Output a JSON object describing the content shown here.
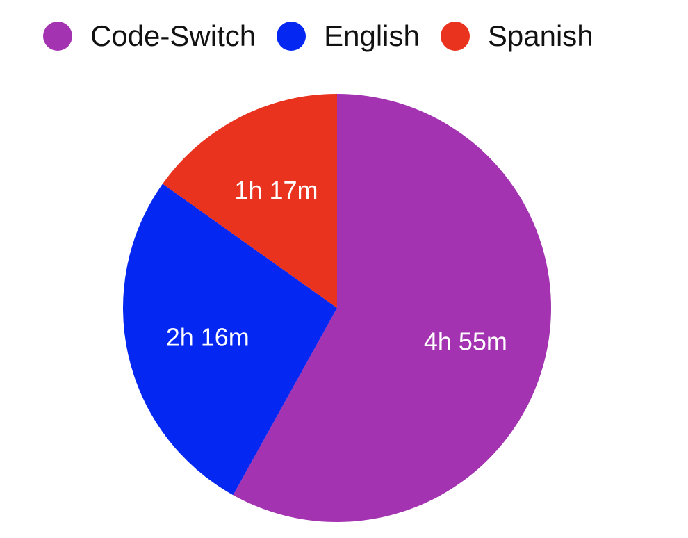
{
  "chart_data": {
    "type": "pie",
    "title": "",
    "categories": [
      "Code-Switch",
      "English",
      "Spanish"
    ],
    "values": [
      295,
      136,
      77
    ],
    "value_unit": "minutes",
    "labels": [
      "4h 55m",
      "2h 16m",
      "1h 17m"
    ],
    "colors": [
      "#A333B1",
      "#0527F2",
      "#E9331E"
    ],
    "legend_position": "top-left",
    "start_angle": "12 o'clock",
    "direction": "clockwise"
  },
  "legend": {
    "items": [
      {
        "label": "Code-Switch",
        "color": "#A333B1"
      },
      {
        "label": "English",
        "color": "#0527F2"
      },
      {
        "label": "Spanish",
        "color": "#E9331E"
      }
    ]
  }
}
